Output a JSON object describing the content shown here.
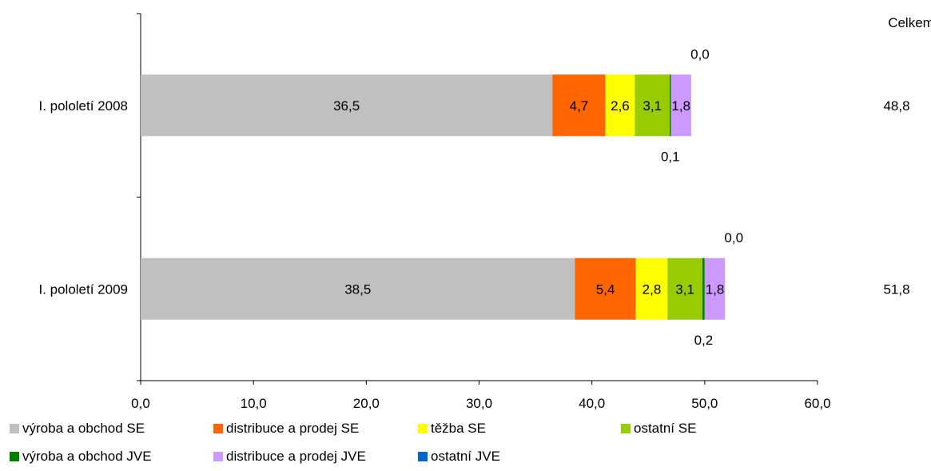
{
  "chart_data": {
    "type": "bar",
    "orientation": "horizontal",
    "stacked": true,
    "categories": [
      "I. pololetí 2008",
      "I. pololetí 2009"
    ],
    "series": [
      {
        "name": "výroba a obchod SE",
        "color": "#c0c0c0",
        "values": [
          36.5,
          38.5
        ],
        "labels": [
          "36,5",
          "38,5"
        ]
      },
      {
        "name": "distribuce a prodej SE",
        "color": "#ff6600",
        "values": [
          4.7,
          5.4
        ],
        "labels": [
          "4,7",
          "5,4"
        ]
      },
      {
        "name": "těžba SE",
        "color": "#ffff00",
        "values": [
          2.6,
          2.8
        ],
        "labels": [
          "2,6",
          "2,8"
        ]
      },
      {
        "name": "ostatní SE",
        "color": "#99cc00",
        "values": [
          3.1,
          3.1
        ],
        "labels": [
          "3,1",
          "3,1"
        ]
      },
      {
        "name": "výroba a obchod JVE",
        "color": "#008000",
        "values": [
          0.1,
          0.2
        ],
        "labels": [
          "0,1",
          "0,2"
        ]
      },
      {
        "name": "distribuce a prodej JVE",
        "color": "#cc99ff",
        "values": [
          1.8,
          1.8
        ],
        "labels": [
          "1,8",
          "1,8"
        ]
      },
      {
        "name": "ostatní JVE",
        "color": "#0066cc",
        "values": [
          0.0,
          0.0
        ],
        "labels": [
          "0,0",
          "0,0"
        ]
      }
    ],
    "totals_header": "Celkem",
    "totals": [
      "48,8",
      "51,8"
    ],
    "xlim": [
      0,
      60
    ],
    "xticks": [
      "0,0",
      "10,0",
      "20,0",
      "30,0",
      "40,0",
      "50,0",
      "60,0"
    ],
    "grid": false,
    "legend_position": "bottom"
  }
}
